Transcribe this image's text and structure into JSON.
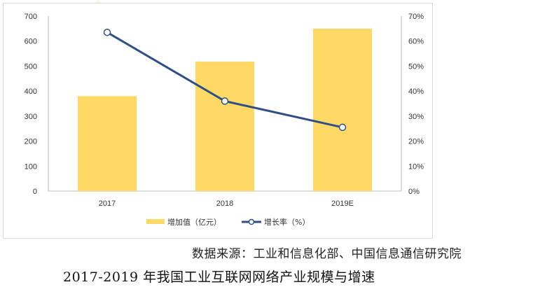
{
  "chart_data": {
    "type": "bar+line",
    "categories": [
      "2017",
      "2018",
      "2019E"
    ],
    "series": [
      {
        "name": "增加值（亿元）",
        "type": "bar",
        "axis": "left",
        "values": [
          380,
          518,
          650
        ],
        "color": "#ffd966"
      },
      {
        "name": "增长率（%）",
        "type": "line",
        "axis": "right",
        "values": [
          63.5,
          36,
          25.5
        ],
        "color": "#2f4f86"
      }
    ],
    "y_left": {
      "min": 0,
      "max": 700,
      "step": 100,
      "ticks": [
        "0",
        "100",
        "200",
        "300",
        "400",
        "500",
        "600",
        "700"
      ]
    },
    "y_right": {
      "min": 0,
      "max": 70,
      "step": 10,
      "ticks": [
        "0%",
        "10%",
        "20%",
        "30%",
        "40%",
        "50%",
        "60%",
        "70%"
      ]
    },
    "legend_position": "bottom",
    "grid": false
  },
  "source": "数据来源：工业和信息化部、中国信息通信研究院",
  "caption": "2017-2019 年我国工业互联网网络产业规模与增速"
}
